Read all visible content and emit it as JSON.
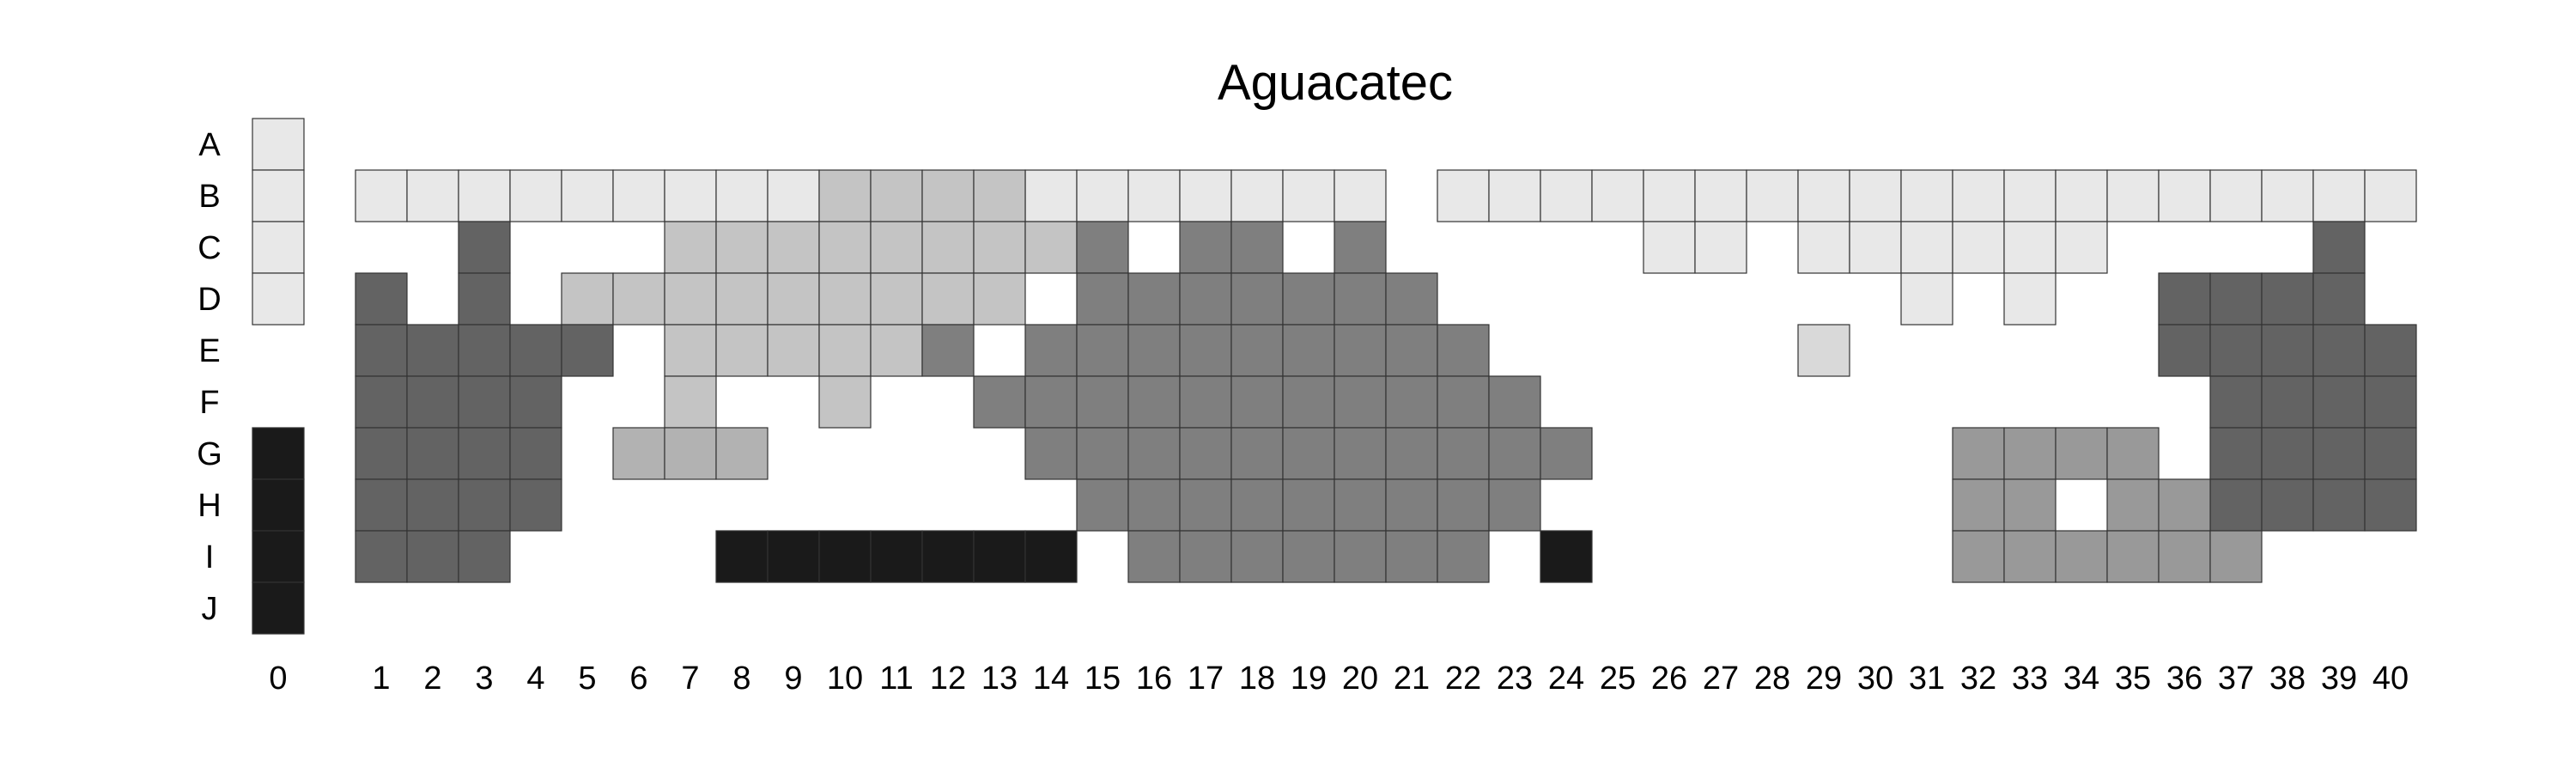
{
  "chart_data": {
    "type": "heatmap",
    "title": "Aguacatec",
    "rows": [
      "A",
      "B",
      "C",
      "D",
      "E",
      "F",
      "G",
      "H",
      "I",
      "J"
    ],
    "columns": [
      0,
      1,
      2,
      3,
      4,
      5,
      6,
      7,
      8,
      9,
      10,
      11,
      12,
      13,
      14,
      15,
      16,
      17,
      18,
      19,
      20,
      21,
      22,
      23,
      24,
      25,
      26,
      27,
      28,
      29,
      30,
      31,
      32,
      33,
      34,
      35,
      36,
      37,
      38,
      39,
      40
    ],
    "xlabel": "",
    "ylabel": "",
    "grid": false,
    "legend": "none",
    "palette": {
      "1": "#e8e8e8",
      "2": "#c4c4c4",
      "3": "#b2b2b2",
      "4": "#d9d9d9",
      "5": "#7f7f7f",
      "6": "#636363",
      "7": "#999999",
      "8": "#1a1a1a"
    },
    "cells": [
      {
        "row": "A",
        "cols": [
          0
        ],
        "category": 1
      },
      {
        "row": "B",
        "cols": [
          0,
          1,
          2,
          3,
          4,
          5,
          6,
          7,
          8,
          9,
          14,
          15,
          16,
          17,
          18,
          19,
          20,
          22,
          23,
          24,
          25,
          26,
          27,
          28,
          29,
          30,
          31,
          32,
          33,
          34,
          35,
          36,
          37,
          38,
          39,
          40
        ],
        "category": 1
      },
      {
        "row": "B",
        "cols": [
          10,
          11,
          12,
          13
        ],
        "category": 2
      },
      {
        "row": "C",
        "cols": [
          0,
          26,
          27,
          29,
          30,
          31,
          32,
          33,
          34
        ],
        "category": 1
      },
      {
        "row": "C",
        "cols": [
          3,
          39
        ],
        "category": 6
      },
      {
        "row": "C",
        "cols": [
          7,
          8,
          9,
          10,
          11,
          12,
          13,
          14
        ],
        "category": 2
      },
      {
        "row": "C",
        "cols": [
          15,
          17,
          18,
          20
        ],
        "category": 5
      },
      {
        "row": "D",
        "cols": [
          0,
          31,
          33
        ],
        "category": 1
      },
      {
        "row": "D",
        "cols": [
          1,
          3,
          36,
          37,
          38,
          39
        ],
        "category": 6
      },
      {
        "row": "D",
        "cols": [
          5,
          6,
          7,
          8,
          9,
          10,
          11,
          12,
          13
        ],
        "category": 2
      },
      {
        "row": "D",
        "cols": [
          15,
          16,
          17,
          18,
          19,
          20,
          21
        ],
        "category": 5
      },
      {
        "row": "E",
        "cols": [
          1,
          2,
          3,
          4,
          5,
          36,
          37,
          38,
          39,
          40
        ],
        "category": 6
      },
      {
        "row": "E",
        "cols": [
          7,
          8,
          9,
          10,
          11
        ],
        "category": 2
      },
      {
        "row": "E",
        "cols": [
          12,
          14,
          15,
          16,
          17,
          18,
          19,
          20,
          21,
          22
        ],
        "category": 5
      },
      {
        "row": "E",
        "cols": [
          29
        ],
        "category": 4
      },
      {
        "row": "F",
        "cols": [
          1,
          2,
          3,
          4,
          37,
          38,
          39,
          40
        ],
        "category": 6
      },
      {
        "row": "F",
        "cols": [
          7,
          10
        ],
        "category": 2
      },
      {
        "row": "F",
        "cols": [
          13,
          14,
          15,
          16,
          17,
          18,
          19,
          20,
          21,
          22,
          23
        ],
        "category": 5
      },
      {
        "row": "G",
        "cols": [
          0
        ],
        "category": 8
      },
      {
        "row": "G",
        "cols": [
          1,
          2,
          3,
          4,
          37,
          38,
          39,
          40
        ],
        "category": 6
      },
      {
        "row": "G",
        "cols": [
          6,
          7,
          8
        ],
        "category": 3
      },
      {
        "row": "G",
        "cols": [
          14,
          15,
          16,
          17,
          18,
          19,
          20,
          21,
          22,
          23,
          24
        ],
        "category": 5
      },
      {
        "row": "G",
        "cols": [
          32,
          33,
          34,
          35
        ],
        "category": 7
      },
      {
        "row": "H",
        "cols": [
          0
        ],
        "category": 8
      },
      {
        "row": "H",
        "cols": [
          1,
          2,
          3,
          4,
          37,
          38,
          39,
          40
        ],
        "category": 6
      },
      {
        "row": "H",
        "cols": [
          15,
          16,
          17,
          18,
          19,
          20,
          21,
          22,
          23
        ],
        "category": 5
      },
      {
        "row": "H",
        "cols": [
          32,
          33,
          35,
          36
        ],
        "category": 7
      },
      {
        "row": "I",
        "cols": [
          0,
          8,
          9,
          10,
          11,
          12,
          13,
          14,
          24
        ],
        "category": 8
      },
      {
        "row": "I",
        "cols": [
          1,
          2,
          3
        ],
        "category": 6
      },
      {
        "row": "I",
        "cols": [
          16,
          17,
          18,
          19,
          20,
          21,
          22
        ],
        "category": 5
      },
      {
        "row": "I",
        "cols": [
          32,
          33,
          34,
          35,
          36,
          37
        ],
        "category": 7
      },
      {
        "row": "J",
        "cols": [
          0
        ],
        "category": 8
      }
    ]
  }
}
